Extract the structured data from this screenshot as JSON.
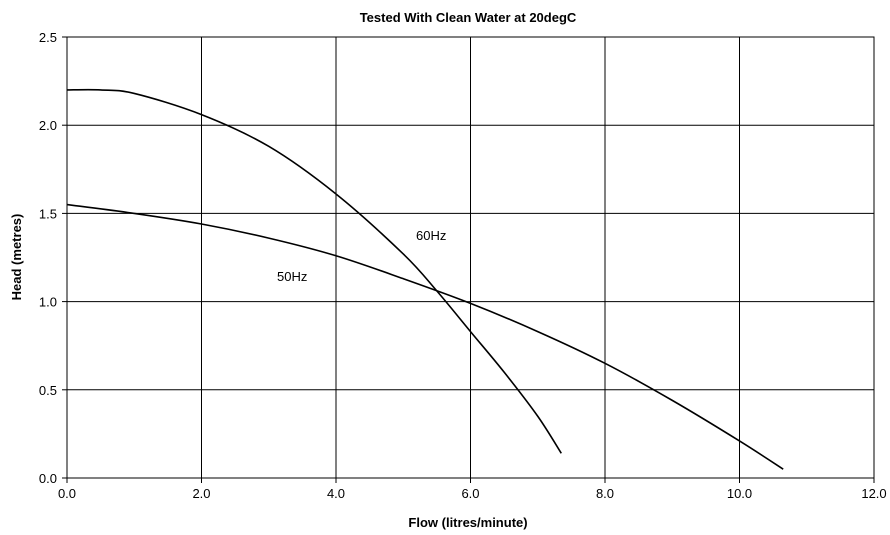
{
  "chart_data": {
    "type": "line",
    "title": "Tested With Clean Water at 20degC",
    "xlabel": "Flow (litres/minute)",
    "ylabel": "Head (metres)",
    "xlim": [
      0,
      12
    ],
    "ylim": [
      0,
      2.5
    ],
    "x_ticks": [
      "0.0",
      "2.0",
      "4.0",
      "6.0",
      "8.0",
      "10.0",
      "12.0"
    ],
    "y_ticks": [
      "0.0",
      "0.5",
      "1.0",
      "1.5",
      "2.0",
      "2.5"
    ],
    "grid": true,
    "series": [
      {
        "name": "60Hz",
        "x": [
          0,
          0.5,
          1.0,
          2.0,
          3.0,
          4.0,
          5.0,
          5.5,
          6.0,
          6.5,
          7.0,
          7.35
        ],
        "y": [
          2.2,
          2.2,
          2.18,
          2.06,
          1.88,
          1.61,
          1.27,
          1.06,
          0.83,
          0.6,
          0.35,
          0.14
        ]
      },
      {
        "name": "50Hz",
        "x": [
          0,
          1.0,
          2.0,
          3.0,
          4.0,
          5.0,
          6.0,
          7.0,
          8.0,
          9.0,
          10.0,
          10.65
        ],
        "y": [
          1.55,
          1.5,
          1.44,
          1.36,
          1.26,
          1.13,
          0.99,
          0.83,
          0.65,
          0.44,
          0.21,
          0.05
        ]
      }
    ]
  }
}
